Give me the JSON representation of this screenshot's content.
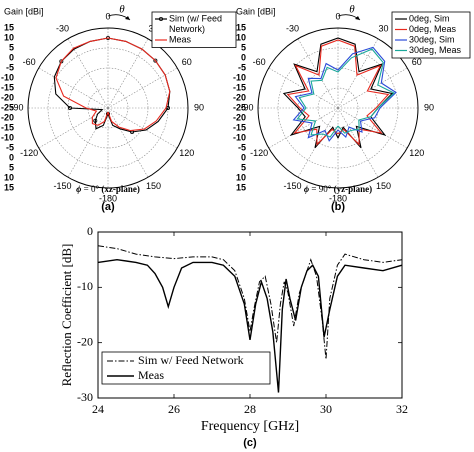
{
  "chart_data": [
    {
      "panel": "a",
      "type": "polar-line",
      "panel_label": "(a)",
      "caption": {
        "symbol": "ϕ",
        "text": " = 0° ",
        "bold": "(xz-plane)"
      },
      "r_axis_title": "Gain [dBi]",
      "theta_symbol": "θ",
      "r_ticks": [
        "15",
        "10",
        "5",
        "0",
        "-5",
        "-10",
        "-15",
        "-20",
        "-25",
        "-20",
        "-15",
        "-10",
        "-5",
        "0",
        "5",
        "10",
        "15"
      ],
      "r_range": [
        -25,
        15
      ],
      "theta_ticks": [
        "0",
        "30",
        "60",
        "90",
        "120",
        "150",
        "-180",
        "-150",
        "-120",
        "-90",
        "-60",
        "-30"
      ],
      "legend": {
        "position": "top-right",
        "entries": [
          "Sim (w/ Feed",
          "Network)",
          "Meas"
        ]
      },
      "series": [
        {
          "name": "Sim (w/ Feed Network)",
          "color": "#000000",
          "marker": "circle",
          "theta": [
            -180,
            -165,
            -150,
            -135,
            -120,
            -105,
            -90,
            -75,
            -60,
            -45,
            -30,
            -15,
            0,
            15,
            30,
            45,
            60,
            75,
            90,
            105,
            120,
            135,
            150,
            165,
            180
          ],
          "gain": [
            -22,
            -16,
            -13,
            -16,
            -19,
            -22,
            -6,
            2,
            6,
            8,
            9,
            9.5,
            10,
            9.5,
            9,
            8.5,
            8,
            7,
            5,
            1,
            -3,
            -8,
            -13,
            -16,
            -22
          ]
        },
        {
          "name": "Meas",
          "color": "#e8281e",
          "theta": [
            -180,
            -165,
            -150,
            -135,
            -120,
            -105,
            -90,
            -75,
            -60,
            -45,
            -30,
            -15,
            0,
            15,
            30,
            45,
            60,
            75,
            90,
            105,
            120,
            135,
            150,
            165,
            180
          ],
          "gain": [
            -23,
            -18,
            -15,
            -14,
            -16,
            -19,
            -14,
            -2,
            5,
            8,
            9.5,
            9.5,
            10,
            9.5,
            9,
            8.5,
            8,
            7,
            4,
            0,
            -4,
            -9,
            -14,
            -18,
            -23
          ]
        }
      ]
    },
    {
      "panel": "b",
      "type": "polar-line",
      "panel_label": "(b)",
      "caption": {
        "symbol": "ϕ",
        "text": " = 90° ",
        "bold": "(yz-plane)"
      },
      "r_axis_title": "Gain [dBi]",
      "theta_symbol": "θ",
      "r_ticks": [
        "15",
        "10",
        "5",
        "0",
        "-5",
        "-10",
        "-15",
        "-20",
        "-25",
        "-20",
        "-15",
        "-10",
        "-5",
        "0",
        "5",
        "10",
        "15"
      ],
      "r_range": [
        -25,
        15
      ],
      "theta_ticks": [
        "0",
        "30",
        "60",
        "90",
        "120",
        "150",
        "-180",
        "-150",
        "-120",
        "-90",
        "-60",
        "-30"
      ],
      "legend": {
        "position": "top-right",
        "entries": [
          "0deg, Sim",
          "0deg, Meas",
          "30deg, Sim",
          "30deg, Meas"
        ]
      },
      "series": [
        {
          "name": "0deg, Sim",
          "color": "#000000",
          "theta": [
            -180,
            -165,
            -150,
            -135,
            -120,
            -105,
            -90,
            -75,
            -60,
            -45,
            -30,
            -15,
            0,
            15,
            30,
            45,
            60,
            75,
            90,
            105,
            120,
            135,
            150,
            165,
            180
          ],
          "gain": [
            -10,
            -15,
            -2,
            -12,
            2,
            -8,
            -5,
            3,
            -6,
            6,
            -4,
            8,
            10,
            8,
            -4,
            6,
            -6,
            3,
            -5,
            -8,
            2,
            -12,
            -2,
            -15,
            -10
          ]
        },
        {
          "name": "0deg, Meas",
          "color": "#e8281e",
          "theta": [
            -180,
            -165,
            -150,
            -135,
            -120,
            -105,
            -90,
            -75,
            -60,
            -45,
            -30,
            -15,
            0,
            15,
            30,
            45,
            60,
            75,
            90,
            105,
            120,
            135,
            150,
            165,
            180
          ],
          "gain": [
            -12,
            -14,
            -4,
            -10,
            0,
            -10,
            -6,
            1,
            -8,
            5,
            -6,
            7,
            9,
            7,
            -6,
            5,
            -8,
            1,
            -6,
            -10,
            0,
            -10,
            -4,
            -14,
            -12
          ]
        },
        {
          "name": "30deg, Sim",
          "color": "#2a4bd8",
          "theta": [
            -180,
            -165,
            -150,
            -135,
            -120,
            -105,
            -90,
            -75,
            -60,
            -45,
            -30,
            -15,
            0,
            15,
            30,
            45,
            60,
            75,
            90,
            105,
            120,
            135,
            150,
            165,
            180
          ],
          "gain": [
            -14,
            -8,
            -12,
            -4,
            -10,
            -2,
            -8,
            -3,
            -10,
            -4,
            -8,
            -2,
            -6,
            3,
            10,
            8,
            0,
            5,
            -4,
            -6,
            -12,
            -8,
            -14,
            -10,
            -14
          ]
        },
        {
          "name": "30deg, Meas",
          "color": "#1aa89a",
          "theta": [
            -180,
            -165,
            -150,
            -135,
            -120,
            -105,
            -90,
            -75,
            -60,
            -45,
            -30,
            -15,
            0,
            15,
            30,
            45,
            60,
            75,
            90,
            105,
            120,
            135,
            150,
            165,
            180
          ],
          "gain": [
            -16,
            -10,
            -10,
            -6,
            -12,
            -4,
            -9,
            -5,
            -11,
            -6,
            -9,
            -4,
            -7,
            1,
            9,
            7,
            -2,
            4,
            -5,
            -8,
            -13,
            -10,
            -12,
            -12,
            -16
          ]
        }
      ]
    },
    {
      "panel": "c",
      "type": "line",
      "panel_label": "(c)",
      "xlabel": "Frequency [GHz]",
      "ylabel": "Reflection Coefficient [dB]",
      "xlim": [
        24,
        32
      ],
      "ylim": [
        -30,
        0
      ],
      "xticks": [
        "24",
        "26",
        "28",
        "30",
        "32"
      ],
      "yticks": [
        "0",
        "-10",
        "-20",
        "-30"
      ],
      "legend": {
        "position": "bottom-left"
      },
      "series": [
        {
          "name": "Sim w/ Feed Network",
          "style": "dash-dot",
          "x": [
            24.0,
            24.5,
            25.0,
            25.5,
            26.0,
            26.5,
            27.0,
            27.3,
            27.6,
            27.85,
            28.0,
            28.1,
            28.25,
            28.4,
            28.55,
            28.7,
            28.8,
            28.9,
            29.0,
            29.15,
            29.3,
            29.45,
            29.6,
            29.75,
            29.9,
            30.0,
            30.1,
            30.3,
            30.5,
            31.0,
            31.5,
            32.0
          ],
          "y": [
            -2.5,
            -3,
            -4,
            -4.5,
            -4.8,
            -4.5,
            -4.5,
            -5,
            -7,
            -12,
            -18,
            -14,
            -9,
            -8,
            -13,
            -20,
            -13,
            -9,
            -11,
            -17,
            -11,
            -8,
            -5,
            -8,
            -16,
            -23,
            -12,
            -6,
            -4,
            -5,
            -5.5,
            -5
          ]
        },
        {
          "name": "Meas",
          "style": "solid",
          "x": [
            24.0,
            24.5,
            25.0,
            25.3,
            25.5,
            25.7,
            25.85,
            26.0,
            26.2,
            26.5,
            27.0,
            27.3,
            27.6,
            27.85,
            28.0,
            28.15,
            28.3,
            28.45,
            28.6,
            28.75,
            28.85,
            28.95,
            29.05,
            29.2,
            29.35,
            29.5,
            29.65,
            29.8,
            29.95,
            30.1,
            30.3,
            30.5,
            31.0,
            31.5,
            32.0
          ],
          "y": [
            -5.5,
            -5,
            -5.5,
            -6,
            -7.5,
            -10,
            -13.5,
            -10,
            -6.5,
            -5.5,
            -5.5,
            -6,
            -8,
            -13,
            -19.5,
            -13,
            -9,
            -12,
            -18,
            -29,
            -14,
            -8.5,
            -12,
            -16,
            -10,
            -7,
            -6,
            -8,
            -19,
            -14,
            -8,
            -6,
            -6.5,
            -7,
            -6
          ]
        }
      ]
    }
  ]
}
